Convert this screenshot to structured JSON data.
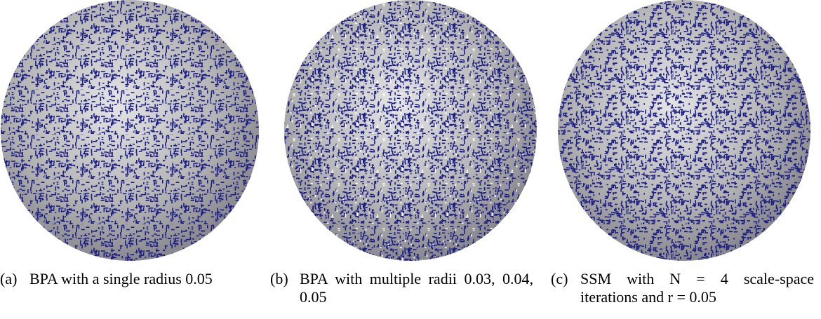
{
  "figure": {
    "panels": [
      {
        "label": "(a)",
        "caption": "BPA with a single radius 0.05"
      },
      {
        "label": "(b)",
        "caption": "BPA with multiple radii 0.03, 0.04, 0.05"
      },
      {
        "label": "(c)",
        "caption": "SSM with N = 4 scale-space iterations and r = 0.05"
      }
    ]
  }
}
